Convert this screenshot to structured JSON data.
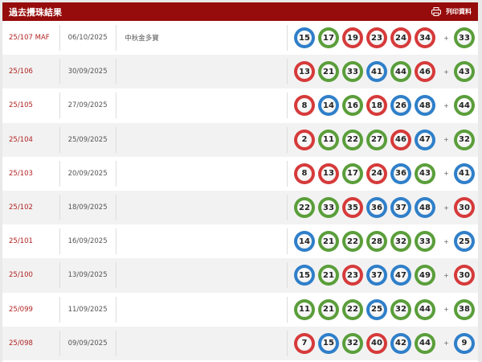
{
  "header": {
    "title": "過去攪珠結果",
    "print_label": "列印資料",
    "print_icon": "printer-icon",
    "bg_color": "#960b0b"
  },
  "ball_colors": {
    "red": "#d63a3a",
    "blue": "#2f7fc9",
    "green": "#5a9e3a"
  },
  "plus": "+",
  "rows": [
    {
      "draw": "25/107 MAF",
      "date": "06/10/2025",
      "note": "中秋金多寶",
      "balls": [
        {
          "n": "15",
          "c": "blue"
        },
        {
          "n": "17",
          "c": "green"
        },
        {
          "n": "19",
          "c": "red"
        },
        {
          "n": "23",
          "c": "red"
        },
        {
          "n": "24",
          "c": "red"
        },
        {
          "n": "34",
          "c": "red"
        }
      ],
      "extra": {
        "n": "33",
        "c": "green"
      }
    },
    {
      "draw": "25/106",
      "date": "30/09/2025",
      "note": "",
      "balls": [
        {
          "n": "13",
          "c": "red"
        },
        {
          "n": "21",
          "c": "green"
        },
        {
          "n": "33",
          "c": "green"
        },
        {
          "n": "41",
          "c": "blue"
        },
        {
          "n": "44",
          "c": "green"
        },
        {
          "n": "46",
          "c": "red"
        }
      ],
      "extra": {
        "n": "43",
        "c": "green"
      }
    },
    {
      "draw": "25/105",
      "date": "27/09/2025",
      "note": "",
      "balls": [
        {
          "n": "8",
          "c": "red"
        },
        {
          "n": "14",
          "c": "blue"
        },
        {
          "n": "16",
          "c": "green"
        },
        {
          "n": "18",
          "c": "red"
        },
        {
          "n": "26",
          "c": "blue"
        },
        {
          "n": "48",
          "c": "blue"
        }
      ],
      "extra": {
        "n": "44",
        "c": "green"
      }
    },
    {
      "draw": "25/104",
      "date": "25/09/2025",
      "note": "",
      "balls": [
        {
          "n": "2",
          "c": "red"
        },
        {
          "n": "11",
          "c": "green"
        },
        {
          "n": "22",
          "c": "green"
        },
        {
          "n": "27",
          "c": "green"
        },
        {
          "n": "46",
          "c": "red"
        },
        {
          "n": "47",
          "c": "blue"
        }
      ],
      "extra": {
        "n": "32",
        "c": "green"
      }
    },
    {
      "draw": "25/103",
      "date": "20/09/2025",
      "note": "",
      "balls": [
        {
          "n": "8",
          "c": "red"
        },
        {
          "n": "13",
          "c": "red"
        },
        {
          "n": "17",
          "c": "green"
        },
        {
          "n": "24",
          "c": "red"
        },
        {
          "n": "36",
          "c": "blue"
        },
        {
          "n": "43",
          "c": "green"
        }
      ],
      "extra": {
        "n": "41",
        "c": "blue"
      }
    },
    {
      "draw": "25/102",
      "date": "18/09/2025",
      "note": "",
      "balls": [
        {
          "n": "22",
          "c": "green"
        },
        {
          "n": "33",
          "c": "green"
        },
        {
          "n": "35",
          "c": "red"
        },
        {
          "n": "36",
          "c": "blue"
        },
        {
          "n": "37",
          "c": "blue"
        },
        {
          "n": "48",
          "c": "blue"
        }
      ],
      "extra": {
        "n": "30",
        "c": "red"
      }
    },
    {
      "draw": "25/101",
      "date": "16/09/2025",
      "note": "",
      "balls": [
        {
          "n": "14",
          "c": "blue"
        },
        {
          "n": "21",
          "c": "green"
        },
        {
          "n": "22",
          "c": "green"
        },
        {
          "n": "28",
          "c": "green"
        },
        {
          "n": "32",
          "c": "green"
        },
        {
          "n": "33",
          "c": "green"
        }
      ],
      "extra": {
        "n": "25",
        "c": "blue"
      }
    },
    {
      "draw": "25/100",
      "date": "13/09/2025",
      "note": "",
      "balls": [
        {
          "n": "15",
          "c": "blue"
        },
        {
          "n": "21",
          "c": "green"
        },
        {
          "n": "23",
          "c": "red"
        },
        {
          "n": "37",
          "c": "blue"
        },
        {
          "n": "47",
          "c": "blue"
        },
        {
          "n": "49",
          "c": "green"
        }
      ],
      "extra": {
        "n": "30",
        "c": "red"
      }
    },
    {
      "draw": "25/099",
      "date": "11/09/2025",
      "note": "",
      "balls": [
        {
          "n": "11",
          "c": "green"
        },
        {
          "n": "21",
          "c": "green"
        },
        {
          "n": "22",
          "c": "green"
        },
        {
          "n": "25",
          "c": "blue"
        },
        {
          "n": "32",
          "c": "green"
        },
        {
          "n": "44",
          "c": "green"
        }
      ],
      "extra": {
        "n": "38",
        "c": "green"
      }
    },
    {
      "draw": "25/098",
      "date": "09/09/2025",
      "note": "",
      "balls": [
        {
          "n": "7",
          "c": "red"
        },
        {
          "n": "15",
          "c": "blue"
        },
        {
          "n": "32",
          "c": "green"
        },
        {
          "n": "40",
          "c": "red"
        },
        {
          "n": "42",
          "c": "blue"
        },
        {
          "n": "44",
          "c": "green"
        }
      ],
      "extra": {
        "n": "9",
        "c": "blue"
      }
    }
  ]
}
